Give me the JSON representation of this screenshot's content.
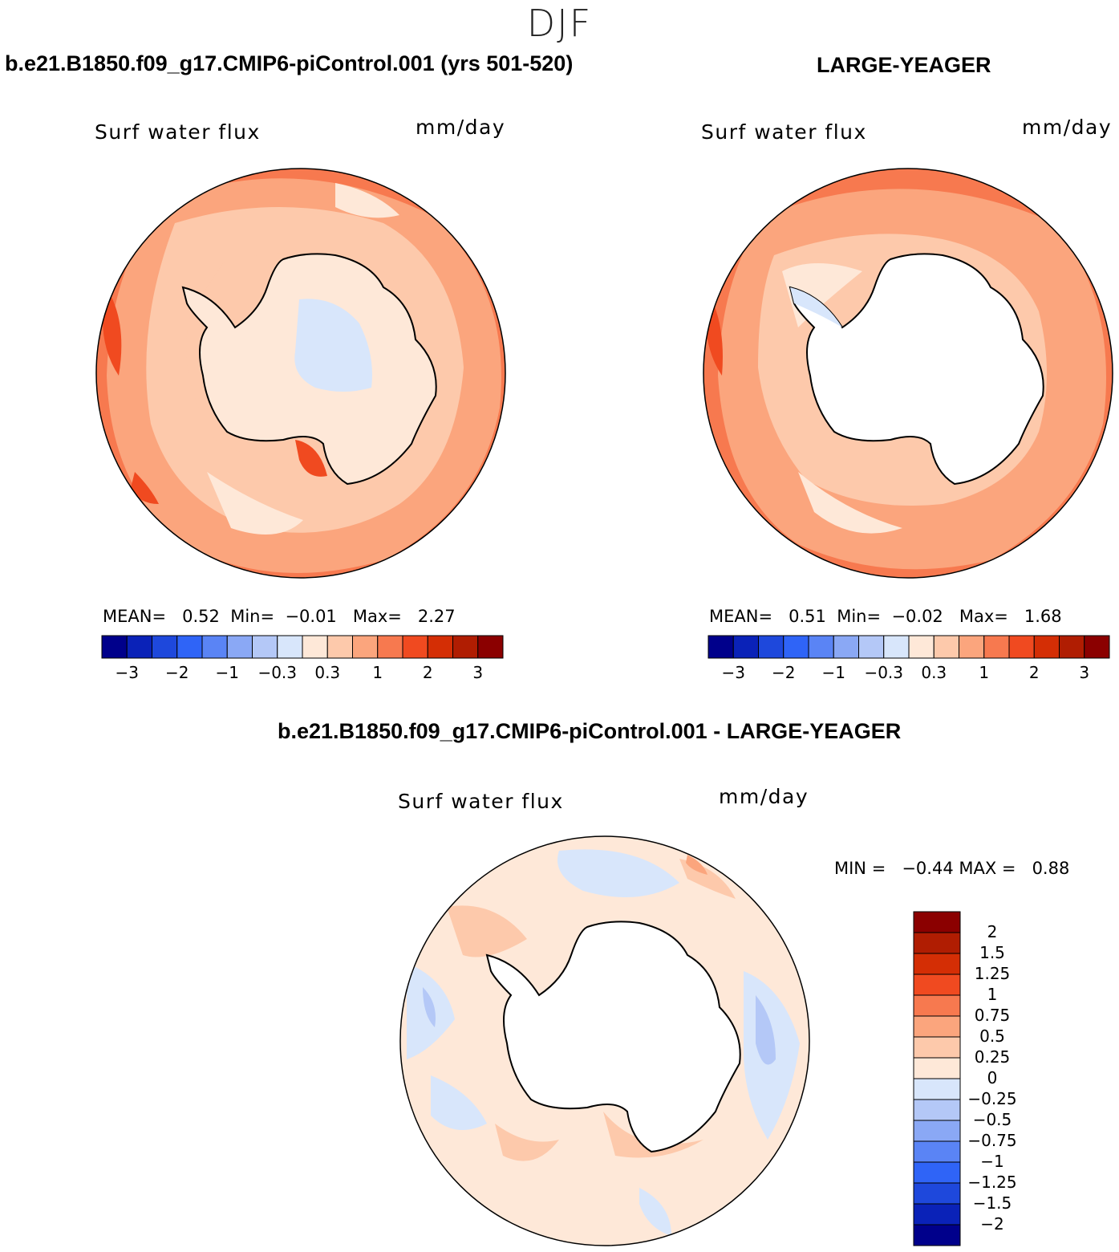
{
  "season": "DJF",
  "panels": [
    {
      "id": "left",
      "title": "b.e21.B1850.f09_g17.CMIP6-piControl.001 (yrs 501-520)",
      "variable": "Surf water flux",
      "units": "mm/day",
      "stats": {
        "mean_label": "MEAN=",
        "mean": "0.52",
        "min_label": "Min=",
        "min": "−0.01",
        "max_label": "Max=",
        "max": "2.27"
      }
    },
    {
      "id": "right",
      "title": "LARGE-YEAGER",
      "variable": "Surf water flux",
      "units": "mm/day",
      "stats": {
        "mean_label": "MEAN=",
        "mean": "0.51",
        "min_label": "Min=",
        "min": "−0.02",
        "max_label": "Max=",
        "max": "1.68"
      }
    }
  ],
  "horizontal_colorbar": {
    "colors": [
      "#00008b",
      "#0a22b8",
      "#1e48dc",
      "#2f64f7",
      "#5a84f5",
      "#8aa8f5",
      "#b4c8f7",
      "#d8e6fb",
      "#fee8d8",
      "#fdc9ab",
      "#fba57d",
      "#f7794f",
      "#f04a20",
      "#d42e05",
      "#b01d02",
      "#8b0000"
    ],
    "tick_labels": [
      "−3",
      "−2",
      "−1",
      "−0.3",
      "0.3",
      "1",
      "2",
      "3"
    ]
  },
  "difference": {
    "title": "b.e21.B1850.f09_g17.CMIP6-piControl.001 - LARGE-YEAGER",
    "variable": "Surf water flux",
    "units": "mm/day",
    "stats": {
      "min_label": "MIN =",
      "min": "−0.44",
      "max_label": "MAX =",
      "max": "0.88"
    },
    "colorbar": {
      "colors_top_to_bottom": [
        "#8b0000",
        "#b01d02",
        "#d42e05",
        "#f04a20",
        "#f7794f",
        "#fba57d",
        "#fdc9ab",
        "#fee8d8",
        "#d8e6fb",
        "#b4c8f7",
        "#8aa8f5",
        "#5a84f5",
        "#2f64f7",
        "#1e48dc",
        "#0a22b8",
        "#00008b"
      ],
      "tick_labels": [
        "2",
        "1.5",
        "1.25",
        "1",
        "0.75",
        "0.5",
        "0.25",
        "0",
        "−0.25",
        "−0.5",
        "−0.75",
        "−1",
        "−1.25",
        "−1.5",
        "−2"
      ]
    }
  }
}
